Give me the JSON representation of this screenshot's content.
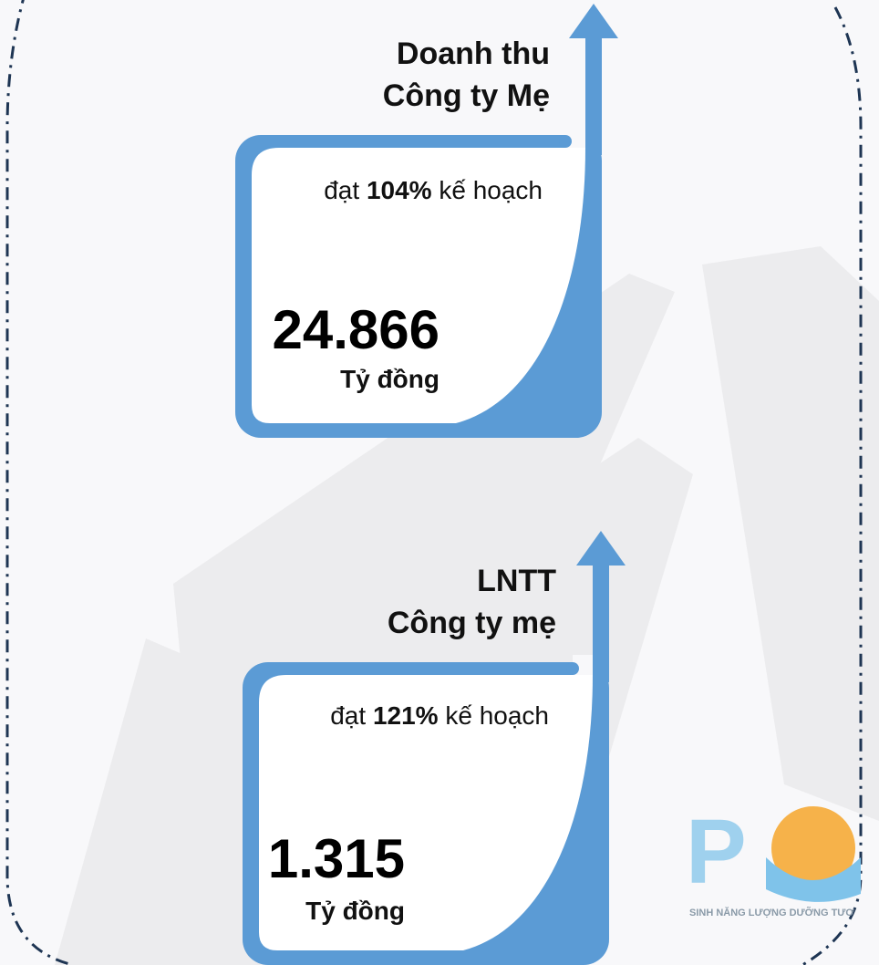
{
  "cards": [
    {
      "title": [
        "Doanh thu",
        "Công ty Mẹ"
      ],
      "plan_prefix": "đạt",
      "plan_percent": "104%",
      "plan_suffix": "kế hoạch",
      "value": "24.866",
      "unit": "Tỷ đồng"
    },
    {
      "title": [
        "LNTT",
        "Công ty mẹ"
      ],
      "plan_prefix": "đạt",
      "plan_percent": "121%",
      "plan_suffix": "kế hoạch",
      "value": "1.315",
      "unit": "Tỷ đồng"
    }
  ],
  "logo": {
    "letter": "P",
    "tagline": "SINH NĂNG LƯỢNG DƯỠNG TƯƠ"
  }
}
